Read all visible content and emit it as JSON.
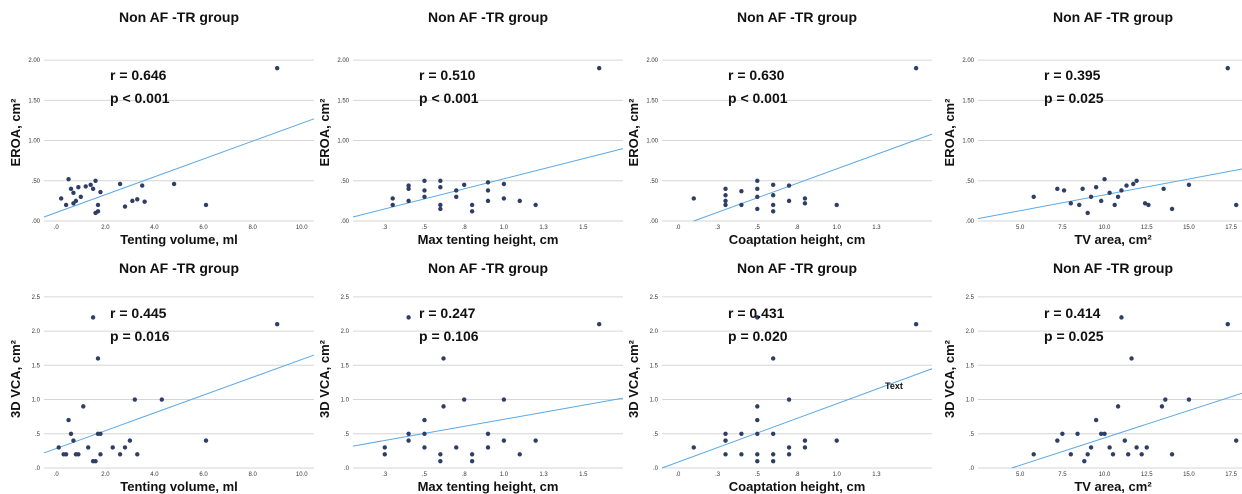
{
  "chart_data": [
    {
      "type": "scatter",
      "title": "Non AF -TR group",
      "stat_r": "r = 0.646",
      "stat_p": "p < 0.001",
      "xlabel": "Tenting volume, ml",
      "ylabel": "EROA, cm²",
      "xlim": [
        -0.5,
        10.5
      ],
      "ylim": [
        0,
        2.2
      ],
      "xticks": [
        0,
        2,
        4,
        6,
        8,
        10
      ],
      "xtick_labels": [
        ".0",
        "2.0",
        "4.0",
        "6.0",
        "8.0",
        "10.0"
      ],
      "yticks": [
        0,
        0.5,
        1.0,
        1.5,
        2.0
      ],
      "ytick_labels": [
        ".00",
        ".50",
        "1.00",
        "1.50",
        "2.00"
      ],
      "fit_line": [
        [
          -0.5,
          0.05
        ],
        [
          10.5,
          1.27
        ]
      ],
      "point_color": "#2e3e66",
      "line_color": "#5aa9e6",
      "note": "",
      "points": [
        [
          0.2,
          0.28
        ],
        [
          0.4,
          0.2
        ],
        [
          0.5,
          0.52
        ],
        [
          0.6,
          0.4
        ],
        [
          0.7,
          0.35
        ],
        [
          0.8,
          0.25
        ],
        [
          0.9,
          0.42
        ],
        [
          1.0,
          0.3
        ],
        [
          0.7,
          0.22
        ],
        [
          1.2,
          0.43
        ],
        [
          1.4,
          0.45
        ],
        [
          1.5,
          0.4
        ],
        [
          1.6,
          0.1
        ],
        [
          1.7,
          0.2
        ],
        [
          1.8,
          0.36
        ],
        [
          1.6,
          0.5
        ],
        [
          1.7,
          0.12
        ],
        [
          2.6,
          0.46
        ],
        [
          2.8,
          0.18
        ],
        [
          3.1,
          0.25
        ],
        [
          3.3,
          0.27
        ],
        [
          3.5,
          0.44
        ],
        [
          3.6,
          0.24
        ],
        [
          4.8,
          0.46
        ],
        [
          6.1,
          0.2
        ],
        [
          9.0,
          1.9
        ]
      ]
    },
    {
      "type": "scatter",
      "title": "Non AF -TR group",
      "stat_r": "r = 0.510",
      "stat_p": "p < 0.001",
      "xlabel": "Max tenting height, cm",
      "ylabel": "EROA, cm²",
      "xlim": [
        0.05,
        1.75
      ],
      "ylim": [
        0,
        2.2
      ],
      "xticks": [
        0.25,
        0.5,
        0.75,
        1.0,
        1.25,
        1.5
      ],
      "xtick_labels": [
        ".3",
        ".5",
        ".8",
        "1.0",
        "1.3",
        "1.5"
      ],
      "yticks": [
        0,
        0.5,
        1.0,
        1.5,
        2.0
      ],
      "ytick_labels": [
        ".00",
        ".50",
        "1.00",
        "1.50",
        "2.00"
      ],
      "fit_line": [
        [
          0.05,
          0.05
        ],
        [
          1.75,
          0.9
        ]
      ],
      "point_color": "#2e3e66",
      "line_color": "#5aa9e6",
      "note": "",
      "points": [
        [
          0.3,
          0.2
        ],
        [
          0.3,
          0.28
        ],
        [
          0.4,
          0.4
        ],
        [
          0.4,
          0.44
        ],
        [
          0.4,
          0.25
        ],
        [
          0.5,
          0.3
        ],
        [
          0.5,
          0.5
        ],
        [
          0.5,
          0.38
        ],
        [
          0.6,
          0.2
        ],
        [
          0.6,
          0.42
        ],
        [
          0.6,
          0.5
        ],
        [
          0.6,
          0.15
        ],
        [
          0.7,
          0.3
        ],
        [
          0.7,
          0.38
        ],
        [
          0.75,
          0.45
        ],
        [
          0.8,
          0.2
        ],
        [
          0.8,
          0.12
        ],
        [
          0.9,
          0.38
        ],
        [
          0.9,
          0.48
        ],
        [
          0.9,
          0.25
        ],
        [
          1.0,
          0.46
        ],
        [
          1.0,
          0.28
        ],
        [
          1.1,
          0.25
        ],
        [
          1.2,
          0.2
        ],
        [
          1.6,
          1.9
        ]
      ]
    },
    {
      "type": "scatter",
      "title": "Non AF -TR group",
      "stat_r": "r = 0.630",
      "stat_p": "p < 0.001",
      "xlabel": "Coaptation height, cm",
      "ylabel": "EROA, cm²",
      "xlim": [
        -0.1,
        1.6
      ],
      "ylim": [
        0,
        2.2
      ],
      "xticks": [
        0,
        0.25,
        0.5,
        0.75,
        1.0,
        1.25
      ],
      "xtick_labels": [
        ".0",
        ".3",
        ".5",
        ".8",
        "1.0",
        "1.3"
      ],
      "yticks": [
        0,
        0.5,
        1.0,
        1.5,
        2.0
      ],
      "ytick_labels": [
        ".00",
        ".50",
        "1.00",
        "1.50",
        "2.00"
      ],
      "fit_line": [
        [
          0.1,
          0.0
        ],
        [
          1.6,
          1.08
        ]
      ],
      "point_color": "#2e3e66",
      "line_color": "#5aa9e6",
      "note": "",
      "points": [
        [
          0.1,
          0.28
        ],
        [
          0.3,
          0.2
        ],
        [
          0.3,
          0.32
        ],
        [
          0.3,
          0.4
        ],
        [
          0.3,
          0.25
        ],
        [
          0.4,
          0.37
        ],
        [
          0.4,
          0.2
        ],
        [
          0.5,
          0.5
        ],
        [
          0.5,
          0.4
        ],
        [
          0.5,
          0.3
        ],
        [
          0.5,
          0.15
        ],
        [
          0.6,
          0.45
        ],
        [
          0.6,
          0.32
        ],
        [
          0.6,
          0.2
        ],
        [
          0.7,
          0.44
        ],
        [
          0.7,
          0.25
        ],
        [
          0.8,
          0.22
        ],
        [
          0.8,
          0.28
        ],
        [
          1.0,
          0.2
        ],
        [
          1.5,
          1.9
        ],
        [
          0.6,
          0.12
        ]
      ]
    },
    {
      "type": "scatter",
      "title": "Non AF -TR group",
      "stat_r": "r = 0.395",
      "stat_p": "p = 0.025",
      "xlabel": "TV area, cm²",
      "ylabel": "EROA, cm²",
      "xlim": [
        2.5,
        18.5
      ],
      "ylim": [
        0,
        2.2
      ],
      "xticks": [
        5,
        7.5,
        10,
        12.5,
        15,
        17.5
      ],
      "xtick_labels": [
        "5.0",
        "7.5",
        "10.0",
        "12.5",
        "15.0",
        "17.5"
      ],
      "yticks": [
        0,
        0.5,
        1.0,
        1.5,
        2.0
      ],
      "ytick_labels": [
        ".00",
        ".50",
        "1.00",
        "1.50",
        "2.00"
      ],
      "fit_line": [
        [
          2.5,
          0.03
        ],
        [
          18.5,
          0.66
        ]
      ],
      "point_color": "#2e3e66",
      "line_color": "#5aa9e6",
      "note": "",
      "points": [
        [
          5.8,
          0.3
        ],
        [
          7.2,
          0.4
        ],
        [
          7.6,
          0.38
        ],
        [
          8.0,
          0.22
        ],
        [
          8.5,
          0.2
        ],
        [
          8.7,
          0.4
        ],
        [
          9.0,
          0.1
        ],
        [
          9.2,
          0.3
        ],
        [
          9.5,
          0.42
        ],
        [
          9.8,
          0.25
        ],
        [
          10.0,
          0.52
        ],
        [
          10.3,
          0.35
        ],
        [
          10.6,
          0.2
        ],
        [
          10.8,
          0.3
        ],
        [
          11.0,
          0.38
        ],
        [
          11.3,
          0.44
        ],
        [
          11.7,
          0.46
        ],
        [
          11.9,
          0.5
        ],
        [
          12.4,
          0.22
        ],
        [
          12.6,
          0.2
        ],
        [
          13.5,
          0.4
        ],
        [
          14.0,
          0.15
        ],
        [
          15.0,
          0.45
        ],
        [
          17.3,
          1.9
        ],
        [
          17.8,
          0.2
        ]
      ]
    },
    {
      "type": "scatter",
      "title": "Non AF -TR group",
      "stat_r": "r = 0.445",
      "stat_p": "p = 0.016",
      "xlabel": "Tenting volume, ml",
      "ylabel": "3D VCA, cm²",
      "xlim": [
        -0.5,
        10.5
      ],
      "ylim": [
        0,
        2.6
      ],
      "xticks": [
        0,
        2,
        4,
        6,
        8,
        10
      ],
      "xtick_labels": [
        ".0",
        "2.0",
        "4.0",
        "6.0",
        "8.0",
        "10.0"
      ],
      "yticks": [
        0,
        0.5,
        1.0,
        1.5,
        2.0,
        2.5
      ],
      "ytick_labels": [
        ".0",
        ".5",
        "1.0",
        "1.5",
        "2.0",
        "2.5"
      ],
      "fit_line": [
        [
          -0.5,
          0.22
        ],
        [
          10.5,
          1.65
        ]
      ],
      "point_color": "#2e3e66",
      "line_color": "#5aa9e6",
      "note": "",
      "points": [
        [
          0.1,
          0.3
        ],
        [
          0.3,
          0.2
        ],
        [
          0.4,
          0.2
        ],
        [
          0.5,
          0.7
        ],
        [
          0.6,
          0.5
        ],
        [
          0.7,
          0.4
        ],
        [
          0.8,
          0.2
        ],
        [
          0.9,
          0.2
        ],
        [
          1.1,
          0.9
        ],
        [
          1.3,
          0.3
        ],
        [
          1.5,
          0.1
        ],
        [
          1.5,
          2.2
        ],
        [
          1.7,
          1.6
        ],
        [
          1.7,
          0.5
        ],
        [
          1.8,
          0.5
        ],
        [
          1.8,
          0.2
        ],
        [
          1.6,
          0.1
        ],
        [
          2.3,
          0.3
        ],
        [
          2.6,
          0.2
        ],
        [
          2.8,
          0.3
        ],
        [
          3.0,
          0.4
        ],
        [
          3.2,
          1.0
        ],
        [
          3.3,
          0.2
        ],
        [
          4.3,
          1.0
        ],
        [
          6.1,
          0.4
        ],
        [
          9.0,
          2.1
        ]
      ]
    },
    {
      "type": "scatter",
      "title": "Non AF -TR group",
      "stat_r": "r = 0.247",
      "stat_p": "p = 0.106",
      "xlabel": "Max tenting height, cm",
      "ylabel": "3D VCA, cm²",
      "xlim": [
        0.05,
        1.75
      ],
      "ylim": [
        0,
        2.6
      ],
      "xticks": [
        0.25,
        0.5,
        0.75,
        1.0,
        1.25,
        1.5
      ],
      "xtick_labels": [
        ".3",
        ".5",
        ".8",
        "1.0",
        "1.3",
        "1.5"
      ],
      "yticks": [
        0,
        0.5,
        1.0,
        1.5,
        2.0,
        2.5
      ],
      "ytick_labels": [
        ".0",
        ".5",
        "1.0",
        "1.5",
        "2.0",
        "2.5"
      ],
      "fit_line": [
        [
          0.05,
          0.32
        ],
        [
          1.75,
          1.02
        ]
      ],
      "point_color": "#2e3e66",
      "line_color": "#5aa9e6",
      "note": "",
      "points": [
        [
          0.25,
          0.2
        ],
        [
          0.25,
          0.3
        ],
        [
          0.4,
          2.2
        ],
        [
          0.4,
          0.4
        ],
        [
          0.4,
          0.5
        ],
        [
          0.5,
          0.7
        ],
        [
          0.5,
          0.5
        ],
        [
          0.5,
          0.3
        ],
        [
          0.6,
          0.2
        ],
        [
          0.6,
          0.1
        ],
        [
          0.62,
          0.9
        ],
        [
          0.62,
          1.6
        ],
        [
          0.7,
          0.3
        ],
        [
          0.75,
          1.0
        ],
        [
          0.8,
          0.2
        ],
        [
          0.8,
          0.1
        ],
        [
          0.9,
          0.3
        ],
        [
          0.9,
          0.5
        ],
        [
          1.0,
          1.0
        ],
        [
          1.0,
          0.4
        ],
        [
          1.1,
          0.2
        ],
        [
          1.2,
          0.4
        ],
        [
          1.6,
          2.1
        ]
      ]
    },
    {
      "type": "scatter",
      "title": "Non AF -TR group",
      "stat_r": "r = 0.431",
      "stat_p": "p = 0.020",
      "xlabel": "Coaptation height, cm",
      "ylabel": "3D VCA, cm²",
      "xlim": [
        -0.1,
        1.6
      ],
      "ylim": [
        0,
        2.6
      ],
      "xticks": [
        0,
        0.25,
        0.5,
        0.75,
        1.0,
        1.25
      ],
      "xtick_labels": [
        ".0",
        ".3",
        ".5",
        ".8",
        "1.0",
        "1.3"
      ],
      "yticks": [
        0,
        0.5,
        1.0,
        1.5,
        2.0,
        2.5
      ],
      "ytick_labels": [
        ".0",
        ".5",
        "1.0",
        "1.5",
        "2.0",
        "2.5"
      ],
      "fit_line": [
        [
          -0.1,
          0.0
        ],
        [
          1.6,
          1.45
        ]
      ],
      "point_color": "#2e3e66",
      "line_color": "#5aa9e6",
      "note": "Text",
      "points": [
        [
          0.1,
          0.3
        ],
        [
          0.3,
          0.4
        ],
        [
          0.3,
          0.5
        ],
        [
          0.3,
          0.2
        ],
        [
          0.4,
          0.5
        ],
        [
          0.4,
          0.2
        ],
        [
          0.5,
          2.2
        ],
        [
          0.5,
          0.9
        ],
        [
          0.5,
          0.7
        ],
        [
          0.5,
          0.5
        ],
        [
          0.5,
          0.2
        ],
        [
          0.5,
          0.1
        ],
        [
          0.6,
          1.6
        ],
        [
          0.6,
          0.5
        ],
        [
          0.6,
          0.2
        ],
        [
          0.6,
          0.1
        ],
        [
          0.7,
          1.0
        ],
        [
          0.7,
          0.3
        ],
        [
          0.7,
          0.2
        ],
        [
          0.8,
          0.4
        ],
        [
          0.8,
          0.3
        ],
        [
          1.0,
          0.4
        ],
        [
          1.5,
          2.1
        ]
      ]
    },
    {
      "type": "scatter",
      "title": "Non AF -TR group",
      "stat_r": "r = 0.414",
      "stat_p": "p = 0.025",
      "xlabel": "TV area, cm²",
      "ylabel": "3D VCA, cm²",
      "xlim": [
        2.5,
        18.5
      ],
      "ylim": [
        0,
        2.6
      ],
      "xticks": [
        5,
        7.5,
        10,
        12.5,
        15,
        17.5
      ],
      "xtick_labels": [
        "5.0",
        "7.5",
        "10.0",
        "12.5",
        "15.0",
        "17.5"
      ],
      "yticks": [
        0,
        0.5,
        1.0,
        1.5,
        2.0,
        2.5
      ],
      "ytick_labels": [
        ".0",
        ".5",
        "1.0",
        "1.5",
        "2.0",
        "2.5"
      ],
      "fit_line": [
        [
          4.5,
          0.0
        ],
        [
          18.5,
          1.12
        ]
      ],
      "point_color": "#2e3e66",
      "line_color": "#5aa9e6",
      "note": "",
      "points": [
        [
          5.8,
          0.2
        ],
        [
          7.2,
          0.4
        ],
        [
          7.5,
          0.5
        ],
        [
          8.0,
          0.2
        ],
        [
          8.4,
          0.5
        ],
        [
          8.8,
          0.1
        ],
        [
          9.0,
          0.2
        ],
        [
          9.2,
          0.3
        ],
        [
          9.5,
          0.7
        ],
        [
          9.8,
          0.5
        ],
        [
          10.0,
          0.5
        ],
        [
          10.3,
          0.3
        ],
        [
          10.5,
          0.2
        ],
        [
          10.8,
          0.9
        ],
        [
          11.0,
          2.2
        ],
        [
          11.2,
          0.4
        ],
        [
          11.4,
          0.2
        ],
        [
          11.6,
          1.6
        ],
        [
          11.9,
          0.3
        ],
        [
          12.2,
          0.2
        ],
        [
          12.5,
          0.3
        ],
        [
          13.4,
          0.9
        ],
        [
          13.6,
          1.0
        ],
        [
          14.0,
          0.2
        ],
        [
          15.0,
          1.0
        ],
        [
          17.3,
          2.1
        ],
        [
          17.8,
          0.4
        ]
      ]
    }
  ]
}
